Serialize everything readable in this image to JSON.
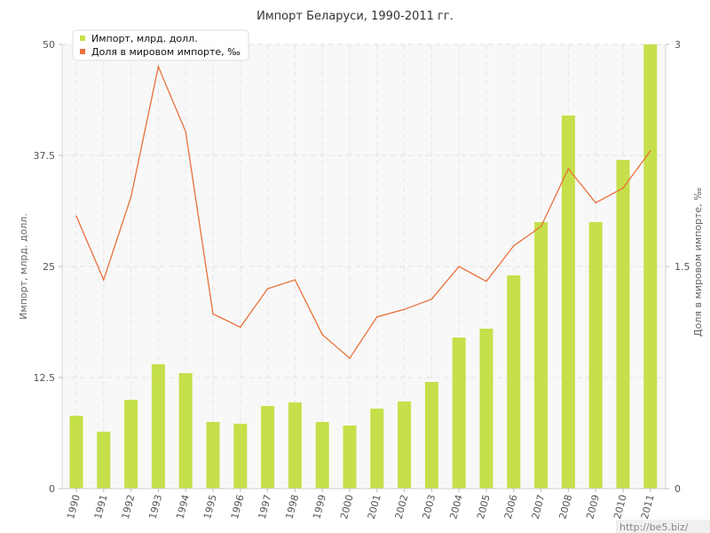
{
  "chart_data": {
    "type": "bar",
    "title": "Импорт Беларуси, 1990-2011 гг.",
    "categories": [
      "1990",
      "1991",
      "1992",
      "1993",
      "1994",
      "1995",
      "1996",
      "1997",
      "1998",
      "1999",
      "2000",
      "2001",
      "2002",
      "2003",
      "2004",
      "2005",
      "2006",
      "2007",
      "2008",
      "2009",
      "2010",
      "2011"
    ],
    "series": [
      {
        "name": "Импорт, млрд. долл.",
        "type": "bar",
        "axis": "left",
        "color": "#c5e04a",
        "values": [
          8.2,
          6.4,
          10.0,
          14.0,
          13.0,
          7.5,
          7.3,
          9.3,
          9.7,
          7.5,
          7.1,
          9.0,
          9.8,
          12.0,
          17.0,
          18.0,
          24.0,
          30.0,
          42.0,
          30.0,
          37.0,
          50.0
        ]
      },
      {
        "name": "Доля в мировом импорте, ‰",
        "type": "line",
        "axis": "right",
        "color": "#e8703a",
        "values": [
          1.84,
          1.41,
          1.97,
          2.85,
          2.41,
          1.18,
          1.09,
          1.35,
          1.41,
          1.04,
          0.88,
          1.16,
          1.21,
          1.28,
          1.5,
          1.4,
          1.64,
          1.77,
          2.16,
          1.93,
          2.03,
          2.28
        ]
      }
    ],
    "ylabel": "Импорт, млрд. долл.",
    "y2label": "Доля в мировом импорте, ‰",
    "xlabel": "",
    "ylim": [
      0,
      50
    ],
    "y2lim": [
      0,
      3
    ],
    "yticks": [
      "0",
      "12.5",
      "25",
      "37.5",
      "50"
    ],
    "y2ticks": [
      "0",
      "1.5",
      "3"
    ],
    "grid": true,
    "legend_position": "top-left"
  },
  "watermark": "http://be5.biz/"
}
